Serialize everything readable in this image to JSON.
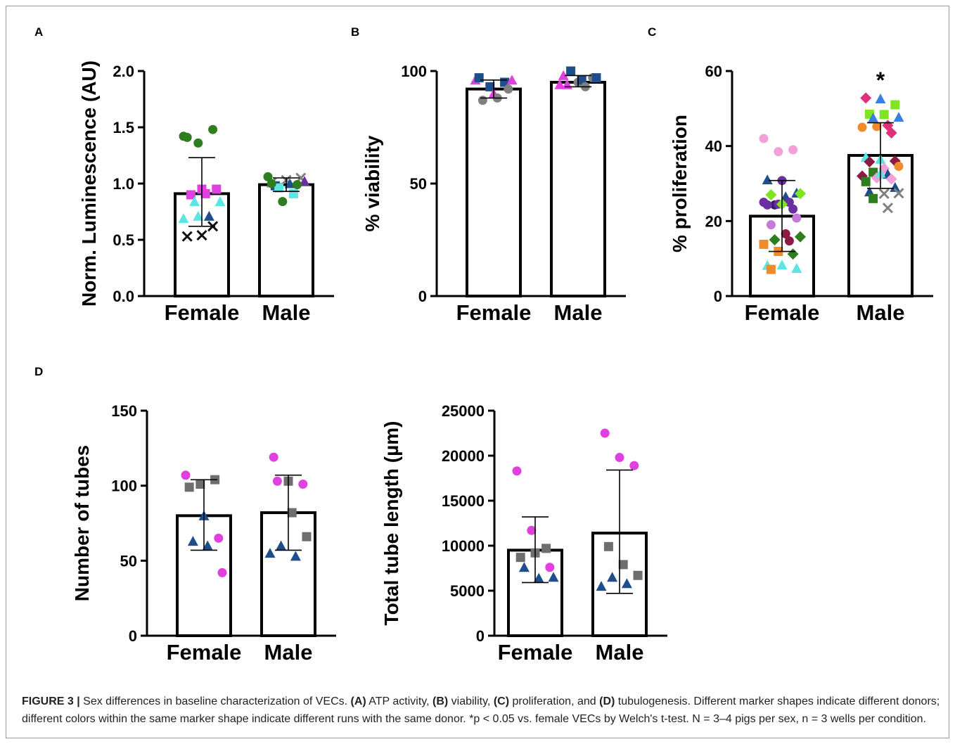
{
  "charts": [
    {
      "panel": "A",
      "type": "bar",
      "categories": [
        "Female",
        "Male"
      ],
      "ylabel": "Norm. Luminescence (AU)",
      "yticks": [
        "0.0",
        "0.5",
        "1.0",
        "1.5",
        "2.0"
      ],
      "ylim": [
        0,
        2.0
      ],
      "values": [
        0.91,
        0.99
      ],
      "error_upper": [
        1.23,
        1.05
      ],
      "error_lower": [
        0.62,
        0.93
      ],
      "annotation": "",
      "points": [
        {
          "x": 0,
          "y": 1.42,
          "shape": "circle",
          "color": "#2e7d1e"
        },
        {
          "x": 0,
          "y": 1.36,
          "shape": "circle",
          "color": "#2e7d1e"
        },
        {
          "x": 0,
          "y": 1.48,
          "shape": "circle",
          "color": "#2e7d1e"
        },
        {
          "x": 0,
          "y": 1.41,
          "shape": "circle",
          "color": "#2e7d1e"
        },
        {
          "x": 0,
          "y": 0.95,
          "shape": "square",
          "color": "#e040e0"
        },
        {
          "x": 0,
          "y": 0.95,
          "shape": "square",
          "color": "#e040e0"
        },
        {
          "x": 0,
          "y": 0.9,
          "shape": "square",
          "color": "#e040e0"
        },
        {
          "x": 0,
          "y": 0.91,
          "shape": "square",
          "color": "#e040e0"
        },
        {
          "x": 0,
          "y": 0.84,
          "shape": "triangle",
          "color": "#5ce5e5"
        },
        {
          "x": 0,
          "y": 0.84,
          "shape": "triangle",
          "color": "#5ce5e5"
        },
        {
          "x": 0,
          "y": 0.71,
          "shape": "triangle",
          "color": "#1f4e8c"
        },
        {
          "x": 0,
          "y": 0.69,
          "shape": "triangle",
          "color": "#5ce5e5"
        },
        {
          "x": 0,
          "y": 0.71,
          "shape": "triangle",
          "color": "#5ce5e5"
        },
        {
          "x": 0,
          "y": 0.62,
          "shape": "cross",
          "color": "#111111"
        },
        {
          "x": 0,
          "y": 0.53,
          "shape": "cross",
          "color": "#111111"
        },
        {
          "x": 0,
          "y": 0.54,
          "shape": "cross",
          "color": "#111111"
        },
        {
          "x": 1,
          "y": 1.01,
          "shape": "cross",
          "color": "#808080"
        },
        {
          "x": 1,
          "y": 1.03,
          "shape": "cross",
          "color": "#808080"
        },
        {
          "x": 1,
          "y": 1.05,
          "shape": "cross",
          "color": "#808080"
        },
        {
          "x": 1,
          "y": 0.98,
          "shape": "square",
          "color": "#1f4e8c"
        },
        {
          "x": 1,
          "y": 1.0,
          "shape": "triangle",
          "color": "#1f4e8c"
        },
        {
          "x": 1,
          "y": 1.02,
          "shape": "triangle",
          "color": "#6a2fa0"
        },
        {
          "x": 1,
          "y": 0.96,
          "shape": "square",
          "color": "#5ce5e5"
        },
        {
          "x": 1,
          "y": 0.91,
          "shape": "square",
          "color": "#5ce5e5"
        },
        {
          "x": 1,
          "y": 1.06,
          "shape": "circle",
          "color": "#2e7d1e"
        },
        {
          "x": 1,
          "y": 0.84,
          "shape": "circle",
          "color": "#2e7d1e"
        },
        {
          "x": 1,
          "y": 0.99,
          "shape": "circle",
          "color": "#2e7d1e"
        },
        {
          "x": 1,
          "y": 1.0,
          "shape": "circle",
          "color": "#2e7d1e"
        }
      ]
    },
    {
      "panel": "B",
      "type": "bar",
      "categories": [
        "Female",
        "Male"
      ],
      "ylabel": "% viability",
      "yticks": [
        "0",
        "50",
        "100"
      ],
      "ylim": [
        0,
        100
      ],
      "values": [
        92,
        95
      ],
      "error_upper": [
        96,
        98
      ],
      "error_lower": [
        88,
        93
      ],
      "annotation": "",
      "points": [
        {
          "x": 0,
          "y": 96,
          "shape": "triangle",
          "color": "#e040e0"
        },
        {
          "x": 0,
          "y": 93,
          "shape": "square",
          "color": "#1f4e8c"
        },
        {
          "x": 0,
          "y": 95,
          "shape": "square",
          "color": "#1f4e8c"
        },
        {
          "x": 0,
          "y": 97,
          "shape": "square",
          "color": "#1f4e8c"
        },
        {
          "x": 0,
          "y": 90,
          "shape": "triangle",
          "color": "#e040e0"
        },
        {
          "x": 0,
          "y": 92,
          "shape": "circle",
          "color": "#808080"
        },
        {
          "x": 0,
          "y": 87,
          "shape": "circle",
          "color": "#808080"
        },
        {
          "x": 0,
          "y": 88,
          "shape": "circle",
          "color": "#808080"
        },
        {
          "x": 0,
          "y": 96,
          "shape": "triangle",
          "color": "#e040e0"
        },
        {
          "x": 1,
          "y": 98,
          "shape": "triangle",
          "color": "#e040e0"
        },
        {
          "x": 1,
          "y": 95,
          "shape": "circle",
          "color": "#808080"
        },
        {
          "x": 1,
          "y": 97,
          "shape": "circle",
          "color": "#808080"
        },
        {
          "x": 1,
          "y": 94,
          "shape": "triangle",
          "color": "#e040e0"
        },
        {
          "x": 1,
          "y": 96,
          "shape": "square",
          "color": "#1f4e8c"
        },
        {
          "x": 1,
          "y": 97,
          "shape": "square",
          "color": "#1f4e8c"
        },
        {
          "x": 1,
          "y": 100,
          "shape": "square",
          "color": "#1f4e8c"
        },
        {
          "x": 1,
          "y": 93,
          "shape": "circle",
          "color": "#808080"
        },
        {
          "x": 1,
          "y": 94,
          "shape": "triangle",
          "color": "#e040e0"
        }
      ]
    },
    {
      "panel": "C",
      "type": "bar",
      "categories": [
        "Female",
        "Male"
      ],
      "ylabel": "% proliferation",
      "yticks": [
        "0",
        "20",
        "40",
        "60"
      ],
      "ylim": [
        0,
        60
      ],
      "values": [
        21.3,
        37.5
      ],
      "error_upper": [
        30.8,
        46.2
      ],
      "error_lower": [
        11.9,
        28.7
      ],
      "annotation": "*",
      "points": [
        {
          "x": 0,
          "y": 42,
          "shape": "circle",
          "color": "#f3a0d8"
        },
        {
          "x": 0,
          "y": 38.5,
          "shape": "circle",
          "color": "#f3a0d8"
        },
        {
          "x": 0,
          "y": 39,
          "shape": "circle",
          "color": "#f3a0d8"
        },
        {
          "x": 0,
          "y": 31,
          "shape": "triangle",
          "color": "#1f4e8c"
        },
        {
          "x": 0,
          "y": 30.8,
          "shape": "circle",
          "color": "#6a2fa0"
        },
        {
          "x": 0,
          "y": 27.5,
          "shape": "triangle",
          "color": "#1f4e8c"
        },
        {
          "x": 0,
          "y": 27,
          "shape": "diamond",
          "color": "#7fe51e"
        },
        {
          "x": 0,
          "y": 26.5,
          "shape": "triangle",
          "color": "#1f4e8c"
        },
        {
          "x": 0,
          "y": 27.3,
          "shape": "diamond",
          "color": "#7fe51e"
        },
        {
          "x": 0,
          "y": 24.3,
          "shape": "circle",
          "color": "#3a1c6e"
        },
        {
          "x": 0,
          "y": 25,
          "shape": "circle",
          "color": "#6a2fa0"
        },
        {
          "x": 0,
          "y": 25,
          "shape": "circle",
          "color": "#6a2fa0"
        },
        {
          "x": 0,
          "y": 24.5,
          "shape": "circle",
          "color": "#6a2fa0"
        },
        {
          "x": 0,
          "y": 23.2,
          "shape": "circle",
          "color": "#6a2fa0"
        },
        {
          "x": 0,
          "y": 24.3,
          "shape": "circle",
          "color": "#6a2fa0"
        },
        {
          "x": 0,
          "y": 24.5,
          "shape": "diamond",
          "color": "#7fe51e"
        },
        {
          "x": 0,
          "y": 20.8,
          "shape": "circle",
          "color": "#c57ad8"
        },
        {
          "x": 0,
          "y": 19,
          "shape": "circle",
          "color": "#c57ad8"
        },
        {
          "x": 0,
          "y": 16.6,
          "shape": "circle",
          "color": "#8b1a44"
        },
        {
          "x": 0,
          "y": 15.8,
          "shape": "diamond",
          "color": "#2e7d1e"
        },
        {
          "x": 0,
          "y": 15,
          "shape": "diamond",
          "color": "#2e7d1e"
        },
        {
          "x": 0,
          "y": 14.7,
          "shape": "circle",
          "color": "#8b1a44"
        },
        {
          "x": 0,
          "y": 13.8,
          "shape": "square",
          "color": "#f08a2a"
        },
        {
          "x": 0,
          "y": 11.9,
          "shape": "square",
          "color": "#f08a2a"
        },
        {
          "x": 0,
          "y": 11.2,
          "shape": "diamond",
          "color": "#2e7d1e"
        },
        {
          "x": 0,
          "y": 8.2,
          "shape": "triangle",
          "color": "#5ce5e5"
        },
        {
          "x": 0,
          "y": 8.3,
          "shape": "triangle",
          "color": "#5ce5e5"
        },
        {
          "x": 0,
          "y": 7.4,
          "shape": "triangle",
          "color": "#5ce5e5"
        },
        {
          "x": 0,
          "y": 7.1,
          "shape": "square",
          "color": "#f08a2a"
        },
        {
          "x": 1,
          "y": 52.8,
          "shape": "diamond",
          "color": "#e0307a"
        },
        {
          "x": 1,
          "y": 52.6,
          "shape": "triangle",
          "color": "#3a7fe0"
        },
        {
          "x": 1,
          "y": 51,
          "shape": "square",
          "color": "#7fe51e"
        },
        {
          "x": 1,
          "y": 48.5,
          "shape": "square",
          "color": "#7fe51e"
        },
        {
          "x": 1,
          "y": 48.4,
          "shape": "square",
          "color": "#7fe51e"
        },
        {
          "x": 1,
          "y": 47.7,
          "shape": "triangle",
          "color": "#3a7fe0"
        },
        {
          "x": 1,
          "y": 47.5,
          "shape": "triangle",
          "color": "#3a7fe0"
        },
        {
          "x": 1,
          "y": 45.5,
          "shape": "diamond",
          "color": "#e0307a"
        },
        {
          "x": 1,
          "y": 45,
          "shape": "circle",
          "color": "#f08a2a"
        },
        {
          "x": 1,
          "y": 45.2,
          "shape": "circle",
          "color": "#f08a2a"
        },
        {
          "x": 1,
          "y": 43.5,
          "shape": "diamond",
          "color": "#e0307a"
        },
        {
          "x": 1,
          "y": 37,
          "shape": "triangle",
          "color": "#5ce5e5"
        },
        {
          "x": 1,
          "y": 36.5,
          "shape": "triangle",
          "color": "#5ce5e5"
        },
        {
          "x": 1,
          "y": 36,
          "shape": "diamond",
          "color": "#8b1a44"
        },
        {
          "x": 1,
          "y": 35.8,
          "shape": "diamond",
          "color": "#8b1a44"
        },
        {
          "x": 1,
          "y": 34,
          "shape": "diamond",
          "color": "#f3a0d8"
        },
        {
          "x": 1,
          "y": 34.6,
          "shape": "circle",
          "color": "#f08a2a"
        },
        {
          "x": 1,
          "y": 33,
          "shape": "square",
          "color": "#2e7d1e"
        },
        {
          "x": 1,
          "y": 32.5,
          "shape": "triangle",
          "color": "#1f4e8c"
        },
        {
          "x": 1,
          "y": 32,
          "shape": "diamond",
          "color": "#8b1a44"
        },
        {
          "x": 1,
          "y": 31.5,
          "shape": "diamond",
          "color": "#f3a0d8"
        },
        {
          "x": 1,
          "y": 31.2,
          "shape": "diamond",
          "color": "#f3a0d8"
        },
        {
          "x": 1,
          "y": 30.5,
          "shape": "square",
          "color": "#2e7d1e"
        },
        {
          "x": 1,
          "y": 32.8,
          "shape": "triangle",
          "color": "#5ce5e5"
        },
        {
          "x": 1,
          "y": 29,
          "shape": "triangle",
          "color": "#1f4e8c"
        },
        {
          "x": 1,
          "y": 27.8,
          "shape": "triangle",
          "color": "#1f4e8c"
        },
        {
          "x": 1,
          "y": 27.3,
          "shape": "cross",
          "color": "#808080"
        },
        {
          "x": 1,
          "y": 27.4,
          "shape": "cross",
          "color": "#808080"
        },
        {
          "x": 1,
          "y": 26,
          "shape": "square",
          "color": "#2e7d1e"
        },
        {
          "x": 1,
          "y": 23.5,
          "shape": "cross",
          "color": "#808080"
        }
      ]
    },
    {
      "panel": "D",
      "type": "bar",
      "categories": [
        "Female",
        "Male"
      ],
      "ylabel": "Number of tubes",
      "yticks": [
        "0",
        "50",
        "100",
        "150"
      ],
      "ylim": [
        0,
        150
      ],
      "values": [
        80,
        82
      ],
      "error_upper": [
        104,
        107
      ],
      "error_lower": [
        57,
        57
      ],
      "annotation": "",
      "points": [
        {
          "x": 0,
          "y": 107,
          "shape": "circle",
          "color": "#e040e0"
        },
        {
          "x": 0,
          "y": 101,
          "shape": "square",
          "color": "#6e6e6e"
        },
        {
          "x": 0,
          "y": 104,
          "shape": "square",
          "color": "#6e6e6e"
        },
        {
          "x": 0,
          "y": 99,
          "shape": "square",
          "color": "#6e6e6e"
        },
        {
          "x": 0,
          "y": 80,
          "shape": "triangle",
          "color": "#1f4e8c"
        },
        {
          "x": 0,
          "y": 65,
          "shape": "circle",
          "color": "#e040e0"
        },
        {
          "x": 0,
          "y": 63,
          "shape": "triangle",
          "color": "#1f4e8c"
        },
        {
          "x": 0,
          "y": 60,
          "shape": "triangle",
          "color": "#1f4e8c"
        },
        {
          "x": 0,
          "y": 42,
          "shape": "circle",
          "color": "#e040e0"
        },
        {
          "x": 1,
          "y": 119,
          "shape": "circle",
          "color": "#e040e0"
        },
        {
          "x": 1,
          "y": 103,
          "shape": "square",
          "color": "#6e6e6e"
        },
        {
          "x": 1,
          "y": 101,
          "shape": "circle",
          "color": "#e040e0"
        },
        {
          "x": 1,
          "y": 103,
          "shape": "circle",
          "color": "#e040e0"
        },
        {
          "x": 1,
          "y": 82,
          "shape": "square",
          "color": "#6e6e6e"
        },
        {
          "x": 1,
          "y": 66,
          "shape": "square",
          "color": "#6e6e6e"
        },
        {
          "x": 1,
          "y": 60,
          "shape": "triangle",
          "color": "#1f4e8c"
        },
        {
          "x": 1,
          "y": 53,
          "shape": "triangle",
          "color": "#1f4e8c"
        },
        {
          "x": 1,
          "y": 55,
          "shape": "triangle",
          "color": "#1f4e8c"
        }
      ]
    },
    {
      "panel": "",
      "type": "bar",
      "categories": [
        "Female",
        "Male"
      ],
      "ylabel": "Total tube length (µm)",
      "yticks": [
        "0",
        "5000",
        "10000",
        "15000",
        "20000",
        "25000"
      ],
      "ylim": [
        0,
        25000
      ],
      "values": [
        9500,
        11400
      ],
      "error_upper": [
        13200,
        18400
      ],
      "error_lower": [
        5900,
        4700
      ],
      "annotation": "",
      "points": [
        {
          "x": 0,
          "y": 18300,
          "shape": "circle",
          "color": "#e040e0"
        },
        {
          "x": 0,
          "y": 11700,
          "shape": "circle",
          "color": "#e040e0"
        },
        {
          "x": 0,
          "y": 9700,
          "shape": "square",
          "color": "#6e6e6e"
        },
        {
          "x": 0,
          "y": 8700,
          "shape": "square",
          "color": "#6e6e6e"
        },
        {
          "x": 0,
          "y": 9200,
          "shape": "square",
          "color": "#6e6e6e"
        },
        {
          "x": 0,
          "y": 7600,
          "shape": "circle",
          "color": "#e040e0"
        },
        {
          "x": 0,
          "y": 7600,
          "shape": "triangle",
          "color": "#1f4e8c"
        },
        {
          "x": 0,
          "y": 6400,
          "shape": "triangle",
          "color": "#1f4e8c"
        },
        {
          "x": 0,
          "y": 6500,
          "shape": "triangle",
          "color": "#1f4e8c"
        },
        {
          "x": 1,
          "y": 22500,
          "shape": "circle",
          "color": "#e040e0"
        },
        {
          "x": 1,
          "y": 19800,
          "shape": "circle",
          "color": "#e040e0"
        },
        {
          "x": 1,
          "y": 18900,
          "shape": "circle",
          "color": "#e040e0"
        },
        {
          "x": 1,
          "y": 9900,
          "shape": "square",
          "color": "#6e6e6e"
        },
        {
          "x": 1,
          "y": 7900,
          "shape": "square",
          "color": "#6e6e6e"
        },
        {
          "x": 1,
          "y": 6700,
          "shape": "square",
          "color": "#6e6e6e"
        },
        {
          "x": 1,
          "y": 6500,
          "shape": "triangle",
          "color": "#1f4e8c"
        },
        {
          "x": 1,
          "y": 5800,
          "shape": "triangle",
          "color": "#1f4e8c"
        },
        {
          "x": 1,
          "y": 5500,
          "shape": "triangle",
          "color": "#1f4e8c"
        }
      ]
    }
  ],
  "caption": {
    "label": "FIGURE 3 |",
    "text_1": " Sex differences in baseline characterization of VECs. ",
    "a": "(A)",
    "a_text": " ATP activity, ",
    "b": "(B)",
    "b_text": " viability, ",
    "c": "(C)",
    "c_text": " proliferation, and ",
    "d": "(D)",
    "d_text": " tubulogenesis. Different marker shapes indicate different donors; different colors within the same marker shape indicate different runs with the same donor. *p < 0.05 vs. female VECs by Welch's t-test. N = 3–4 pigs per sex, n = 3 wells per condition."
  }
}
